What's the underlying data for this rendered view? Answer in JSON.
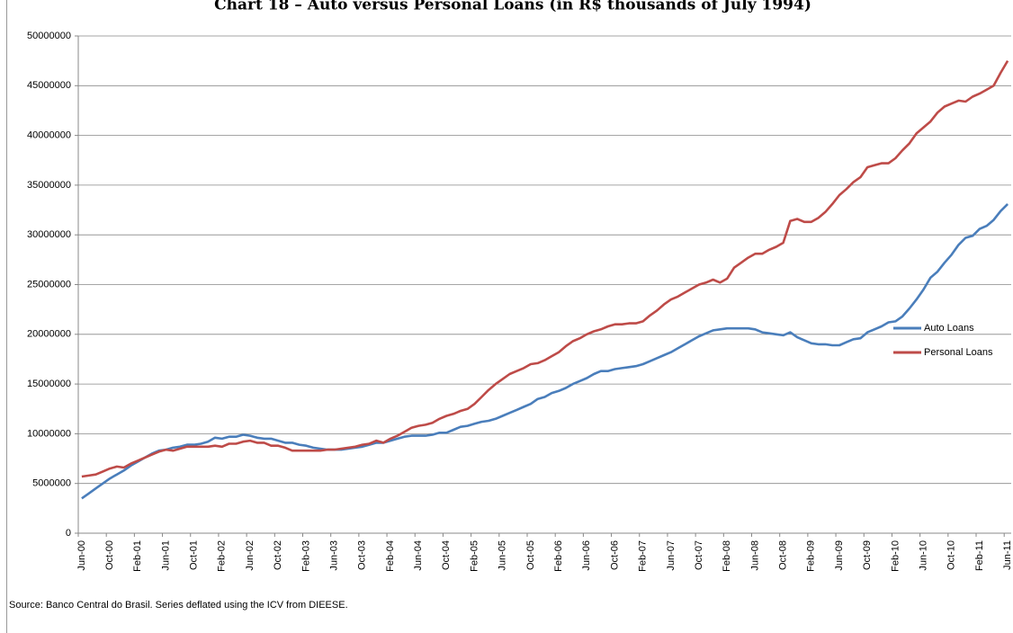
{
  "chart_data": {
    "type": "line",
    "title": "Chart 18 – Auto versus Personal Loans (in R$ thousands of July 1994)",
    "note": "Source: Banco Central do Brasil.  Series deflated using the ICV from DIEESE.",
    "categories": [
      "Jun-00",
      null,
      null,
      null,
      "Oct-00",
      null,
      null,
      null,
      "Feb-01",
      null,
      null,
      null,
      "Jun-01",
      null,
      null,
      null,
      "Oct-01",
      null,
      null,
      null,
      "Feb-02",
      null,
      null,
      null,
      "Jun-02",
      null,
      null,
      null,
      "Oct-02",
      null,
      null,
      null,
      "Feb-03",
      null,
      null,
      null,
      "Jun-03",
      null,
      null,
      null,
      "Oct-03",
      null,
      null,
      null,
      "Feb-04",
      null,
      null,
      null,
      "Jun-04",
      null,
      null,
      null,
      "Oct-04",
      null,
      null,
      null,
      "Feb-05",
      null,
      null,
      null,
      "Jun-05",
      null,
      null,
      null,
      "Oct-05",
      null,
      null,
      null,
      "Feb-06",
      null,
      null,
      null,
      "Jun-06",
      null,
      null,
      null,
      "Oct-06",
      null,
      null,
      null,
      "Feb-07",
      null,
      null,
      null,
      "Jun-07",
      null,
      null,
      null,
      "Oct-07",
      null,
      null,
      null,
      "Feb-08",
      null,
      null,
      null,
      "Jun-08",
      null,
      null,
      null,
      "Oct-08",
      null,
      null,
      null,
      "Feb-09",
      null,
      null,
      null,
      "Jun-09",
      null,
      null,
      null,
      "Oct-09",
      null,
      null,
      null,
      "Feb-10",
      null,
      null,
      null,
      "Jun-10",
      null,
      null,
      null,
      "Oct-10",
      null,
      null,
      null,
      "Feb-11",
      null,
      null,
      null,
      "Jun-11"
    ],
    "series": [
      {
        "name": "Auto Loans",
        "color": "#4a7ebb",
        "values": [
          3500000,
          4000000,
          4500000,
          5000000,
          5500000,
          5900000,
          6300000,
          6800000,
          7200000,
          7600000,
          8000000,
          8300000,
          8400000,
          8600000,
          8700000,
          8900000,
          8900000,
          9000000,
          9200000,
          9600000,
          9500000,
          9700000,
          9700000,
          9900000,
          9800000,
          9600000,
          9500000,
          9500000,
          9300000,
          9100000,
          9100000,
          8900000,
          8800000,
          8600000,
          8500000,
          8400000,
          8400000,
          8400000,
          8500000,
          8600000,
          8700000,
          8900000,
          9100000,
          9100000,
          9300000,
          9500000,
          9700000,
          9800000,
          9800000,
          9800000,
          9900000,
          10100000,
          10100000,
          10400000,
          10700000,
          10800000,
          11000000,
          11200000,
          11300000,
          11500000,
          11800000,
          12100000,
          12400000,
          12700000,
          13000000,
          13500000,
          13700000,
          14100000,
          14300000,
          14600000,
          15000000,
          15300000,
          15600000,
          16000000,
          16300000,
          16300000,
          16500000,
          16600000,
          16700000,
          16800000,
          17000000,
          17300000,
          17600000,
          17900000,
          18200000,
          18600000,
          19000000,
          19400000,
          19800000,
          20100000,
          20400000,
          20500000,
          20600000,
          20600000,
          20600000,
          20600000,
          20500000,
          20200000,
          20100000,
          20000000,
          19900000,
          20200000,
          19700000,
          19400000,
          19100000,
          19000000,
          19000000,
          18900000,
          18900000,
          19200000,
          19500000,
          19600000,
          20200000,
          20500000,
          20800000,
          21200000,
          21300000,
          21800000,
          22600000,
          23500000,
          24500000,
          25700000,
          26300000,
          27200000,
          28000000,
          29000000,
          29700000,
          29900000,
          30600000,
          30900000,
          31500000,
          32400000,
          33100000
        ]
      },
      {
        "name": "Personal Loans",
        "color": "#be4b48",
        "values": [
          5700000,
          5800000,
          5900000,
          6200000,
          6500000,
          6700000,
          6600000,
          7000000,
          7300000,
          7600000,
          7900000,
          8200000,
          8400000,
          8300000,
          8500000,
          8700000,
          8700000,
          8700000,
          8700000,
          8800000,
          8700000,
          9000000,
          9000000,
          9200000,
          9300000,
          9100000,
          9100000,
          8800000,
          8800000,
          8600000,
          8300000,
          8300000,
          8300000,
          8300000,
          8300000,
          8400000,
          8400000,
          8500000,
          8600000,
          8700000,
          8900000,
          9000000,
          9300000,
          9100000,
          9500000,
          9800000,
          10200000,
          10600000,
          10800000,
          10900000,
          11100000,
          11500000,
          11800000,
          12000000,
          12300000,
          12500000,
          13000000,
          13700000,
          14400000,
          15000000,
          15500000,
          16000000,
          16300000,
          16600000,
          17000000,
          17100000,
          17400000,
          17800000,
          18200000,
          18800000,
          19300000,
          19600000,
          20000000,
          20300000,
          20500000,
          20800000,
          21000000,
          21000000,
          21100000,
          21100000,
          21300000,
          21900000,
          22400000,
          23000000,
          23500000,
          23800000,
          24200000,
          24600000,
          25000000,
          25200000,
          25500000,
          25200000,
          25600000,
          26700000,
          27200000,
          27700000,
          28100000,
          28100000,
          28500000,
          28800000,
          29200000,
          31400000,
          31600000,
          31300000,
          31300000,
          31700000,
          32300000,
          33100000,
          34000000,
          34600000,
          35300000,
          35800000,
          36800000,
          37000000,
          37200000,
          37200000,
          37700000,
          38500000,
          39200000,
          40200000,
          40800000,
          41400000,
          42300000,
          42900000,
          43200000,
          43500000,
          43400000,
          43900000,
          44200000,
          44600000,
          45000000,
          46300000,
          47500000
        ]
      }
    ],
    "ylim": [
      0,
      50000000
    ],
    "yticks": [
      0,
      5000000,
      10000000,
      15000000,
      20000000,
      25000000,
      30000000,
      35000000,
      40000000,
      45000000,
      50000000
    ],
    "grid": true,
    "legend": "right"
  }
}
